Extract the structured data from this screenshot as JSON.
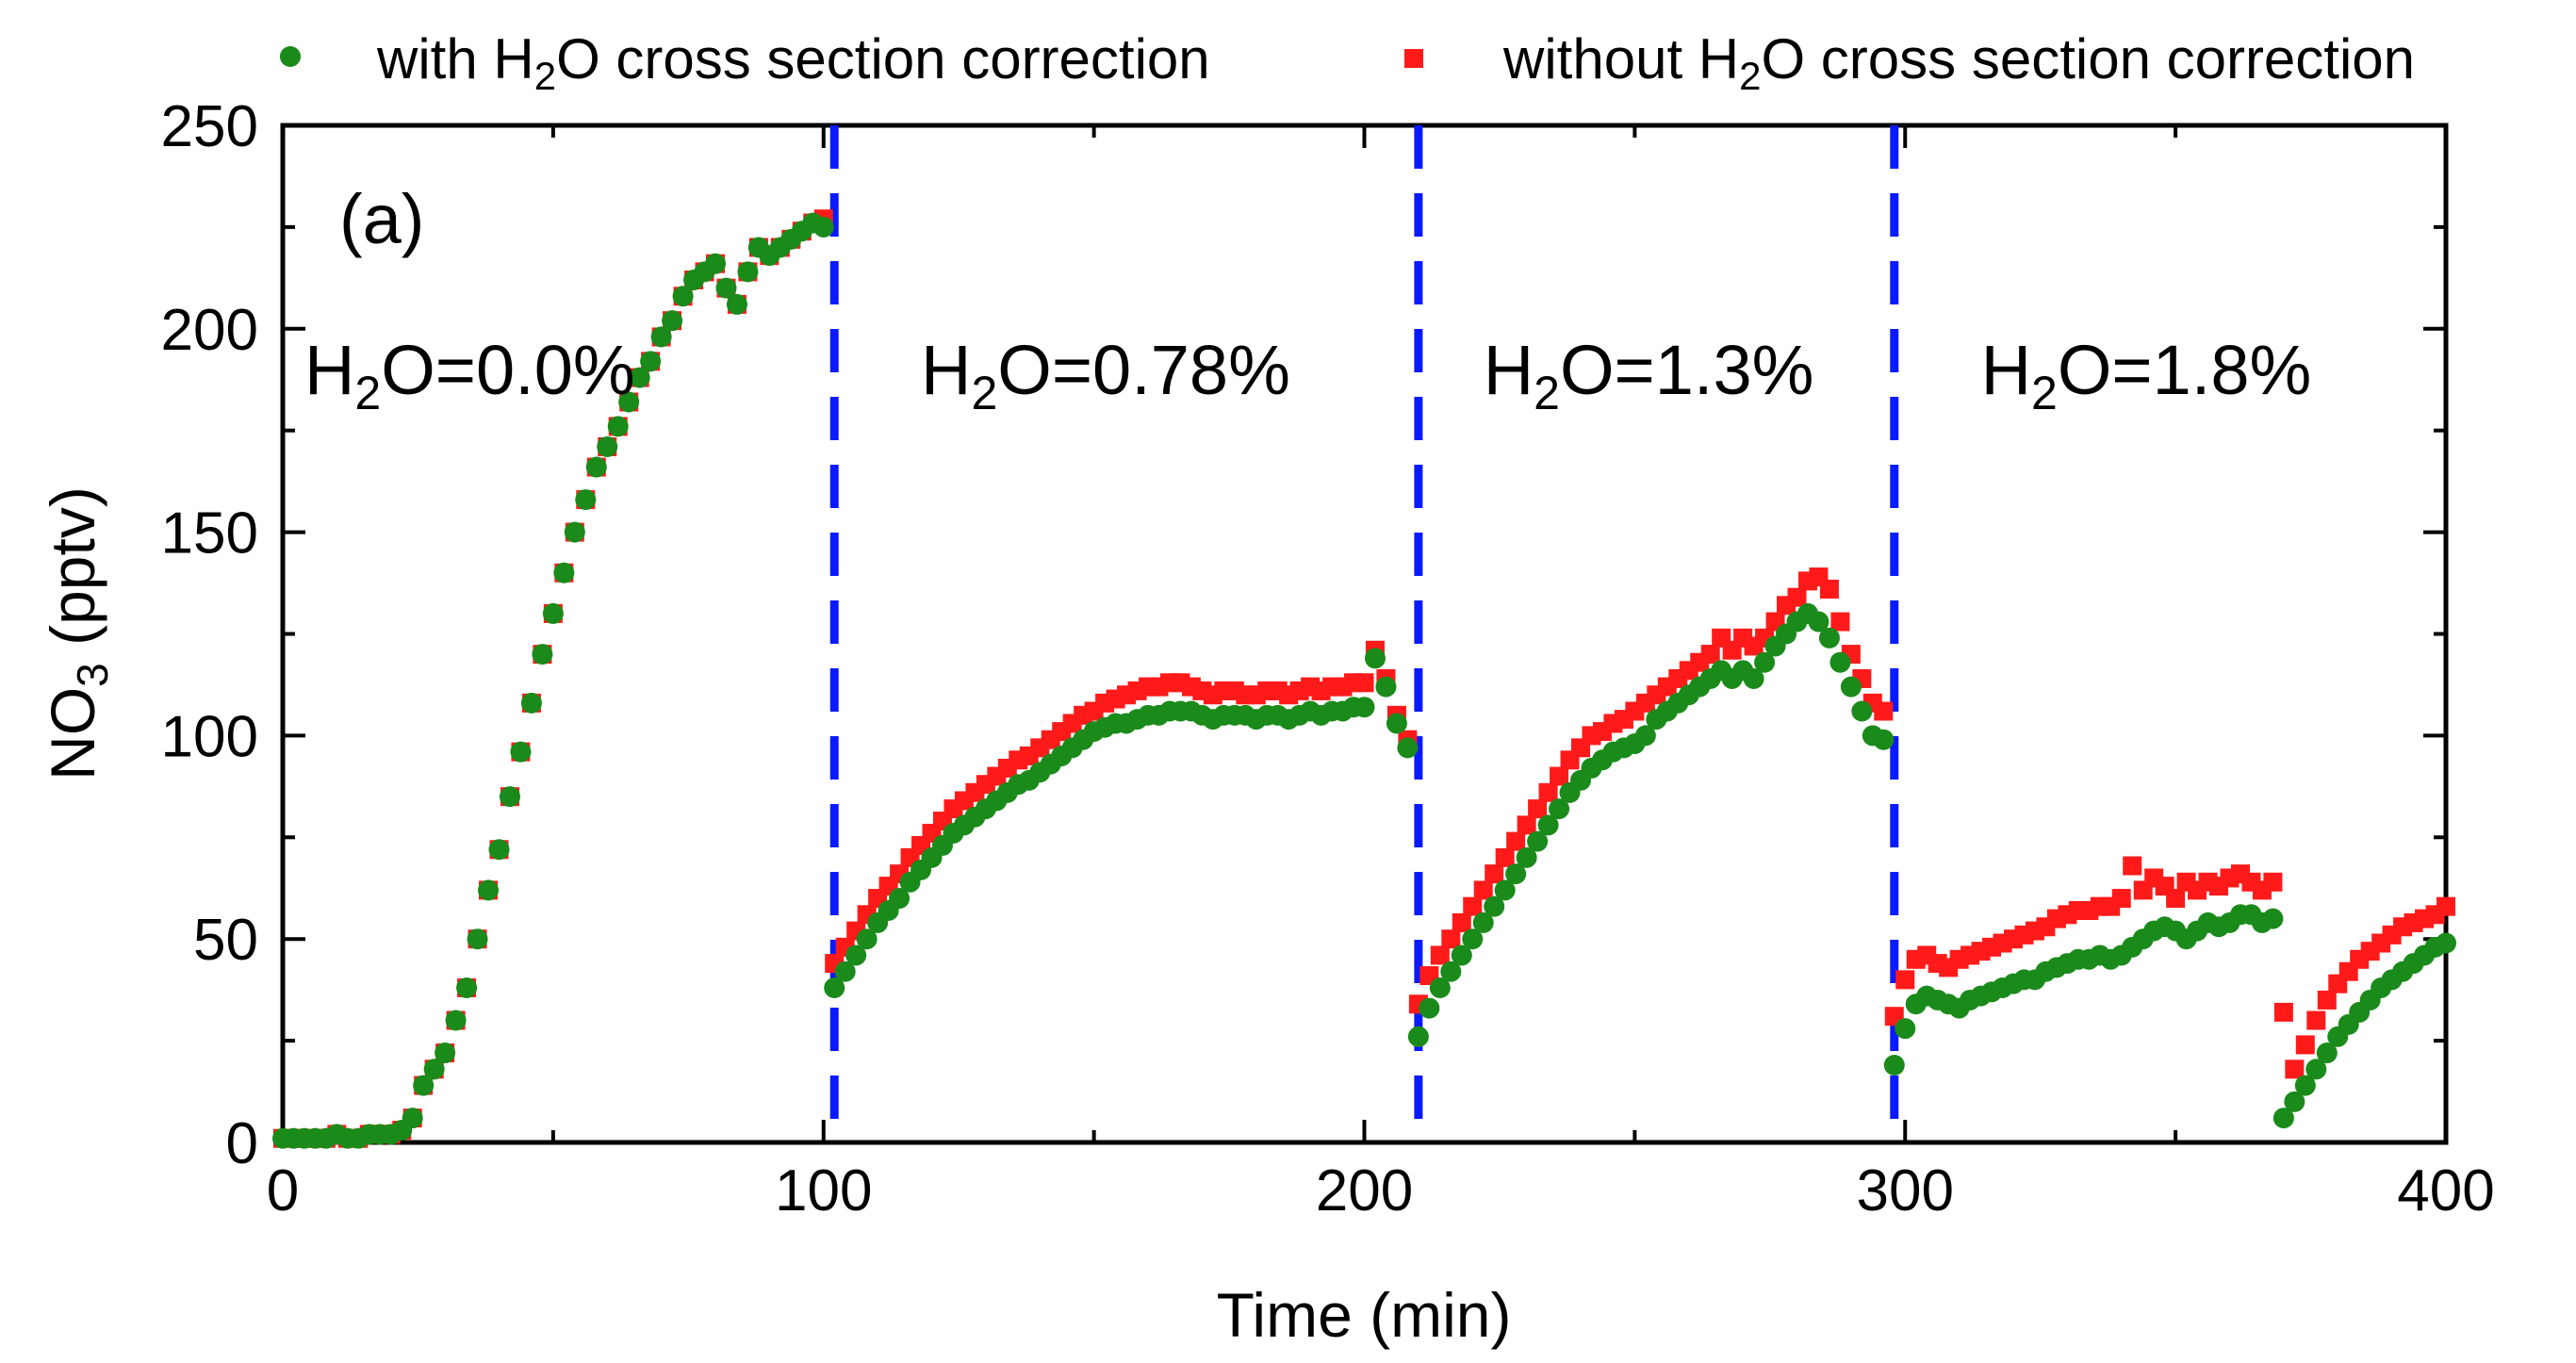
{
  "chart_data": {
    "type": "scatter",
    "title": "",
    "xlabel": {
      "text": "Time (min)"
    },
    "ylabel": {
      "main": "NO",
      "sub": "3",
      "rest": " (pptv)"
    },
    "xlim": [
      0,
      400
    ],
    "ylim": [
      0,
      250
    ],
    "xticks": [
      0,
      100,
      200,
      300,
      400
    ],
    "yticks": [
      0,
      50,
      100,
      150,
      200,
      250
    ],
    "xtick_labels": [
      "0",
      "100",
      "200",
      "300",
      "400"
    ],
    "ytick_labels": [
      "0",
      "50",
      "100",
      "150",
      "200",
      "250"
    ],
    "legend_position": "top",
    "colors": {
      "with": "#1a8a1a",
      "without": "#ff1a1a",
      "divider": "#0a1aff"
    },
    "legend": [
      {
        "pre": "with H",
        "sub": "2",
        "post": "O cross section correction",
        "series": "with"
      },
      {
        "pre": "without H",
        "sub": "2",
        "post": "O cross section correction",
        "series": "without"
      }
    ],
    "panel_label": "(a)",
    "vertical_lines": [
      102,
      210,
      298
    ],
    "annotations": [
      {
        "pre": "H",
        "sub": "2",
        "post": "O=0.0%",
        "x": 4,
        "y": 190
      },
      {
        "pre": "H",
        "sub": "2",
        "post": "O=0.78%",
        "x": 118,
        "y": 190
      },
      {
        "pre": "H",
        "sub": "2",
        "post": "O=1.3%",
        "x": 222,
        "y": 190
      },
      {
        "pre": "H",
        "sub": "2",
        "post": "O=1.8%",
        "x": 314,
        "y": 190
      }
    ],
    "series": [
      {
        "name": "with H2O cross section correction",
        "key": "with",
        "marker": "circle",
        "segments": [
          {
            "x": [
              0,
              2,
              4,
              6,
              8,
              10,
              12,
              14,
              16,
              18,
              20,
              22,
              24,
              26,
              28,
              30,
              32,
              34,
              36,
              38,
              40,
              42,
              44,
              46,
              48,
              50,
              52,
              54,
              56,
              58,
              60,
              62,
              64,
              66,
              68,
              70,
              72,
              74,
              76,
              78,
              80,
              82,
              84,
              86,
              88,
              90,
              92,
              94,
              96,
              98,
              100
            ],
            "y": [
              1,
              1,
              1,
              1,
              1,
              2,
              1,
              1,
              2,
              2,
              2,
              3,
              6,
              14,
              18,
              22,
              30,
              38,
              50,
              62,
              72,
              85,
              96,
              108,
              120,
              130,
              140,
              150,
              158,
              166,
              171,
              176,
              182,
              188,
              192,
              198,
              202,
              208,
              212,
              214,
              216,
              210,
              206,
              214,
              220,
              218,
              220,
              222,
              224,
              226,
              225
            ]
          },
          {
            "x": [
              102,
              104,
              106,
              108,
              110,
              112,
              114,
              116,
              118,
              120,
              122,
              124,
              126,
              128,
              130,
              132,
              134,
              136,
              138,
              140,
              142,
              144,
              146,
              148,
              150,
              152,
              154,
              156,
              158,
              160,
              162,
              164,
              166,
              168,
              170,
              172,
              174,
              176,
              178,
              180,
              182,
              184,
              186,
              188,
              190,
              192,
              194,
              196,
              198,
              200,
              202,
              204,
              206,
              208
            ],
            "y": [
              38,
              42,
              46,
              50,
              54,
              57,
              60,
              64,
              67,
              70,
              73,
              76,
              78,
              80,
              82,
              84,
              86,
              88,
              89,
              91,
              93,
              95,
              97,
              99,
              101,
              102,
              103,
              103,
              104,
              105,
              105,
              106,
              106,
              106,
              105,
              104,
              105,
              105,
              105,
              104,
              105,
              105,
              104,
              105,
              106,
              105,
              106,
              106,
              107,
              107,
              119,
              112,
              103,
              97
            ]
          },
          {
            "x": [
              210,
              212,
              214,
              216,
              218,
              220,
              222,
              224,
              226,
              228,
              230,
              232,
              234,
              236,
              238,
              240,
              242,
              244,
              246,
              248,
              250,
              252,
              254,
              256,
              258,
              260,
              262,
              264,
              266,
              268,
              270,
              272,
              274,
              276,
              278,
              280,
              282,
              284,
              286,
              288,
              290,
              292,
              294,
              296
            ],
            "y": [
              26,
              33,
              38,
              42,
              46,
              50,
              54,
              58,
              62,
              66,
              70,
              74,
              78,
              82,
              86,
              89,
              92,
              94,
              96,
              97,
              98,
              100,
              104,
              106,
              108,
              110,
              112,
              114,
              116,
              114,
              116,
              114,
              118,
              122,
              125,
              128,
              130,
              128,
              124,
              118,
              112,
              106,
              100,
              99
            ]
          },
          {
            "x": [
              298,
              300,
              302,
              304,
              306,
              308,
              310,
              312,
              314,
              316,
              318,
              320,
              322,
              324,
              326,
              328,
              330,
              332,
              334,
              336,
              338,
              340,
              342,
              344,
              346,
              348,
              350,
              352,
              354,
              356,
              358,
              360,
              362,
              364,
              366,
              368
            ],
            "y": [
              19,
              28,
              34,
              36,
              35,
              34,
              33,
              35,
              36,
              37,
              38,
              39,
              40,
              40,
              42,
              43,
              44,
              45,
              45,
              46,
              45,
              46,
              48,
              50,
              52,
              53,
              52,
              50,
              52,
              54,
              53,
              54,
              56,
              56,
              54,
              55
            ]
          },
          {
            "x": [
              370,
              372,
              374,
              376,
              378,
              380,
              382,
              384,
              386,
              388,
              390,
              392,
              394,
              396,
              398,
              400
            ],
            "y": [
              6,
              10,
              14,
              18,
              22,
              26,
              29,
              32,
              35,
              38,
              40,
              42,
              44,
              46,
              48,
              49
            ]
          }
        ]
      },
      {
        "name": "without H2O cross section correction",
        "key": "without",
        "marker": "square",
        "segments": [
          {
            "x": [
              0,
              2,
              4,
              6,
              8,
              10,
              12,
              14,
              16,
              18,
              20,
              22,
              24,
              26,
              28,
              30,
              32,
              34,
              36,
              38,
              40,
              42,
              44,
              46,
              48,
              50,
              52,
              54,
              56,
              58,
              60,
              62,
              64,
              66,
              68,
              70,
              72,
              74,
              76,
              78,
              80,
              82,
              84,
              86,
              88,
              90,
              92,
              94,
              96,
              98,
              100
            ],
            "y": [
              1,
              1,
              1,
              1,
              1,
              2,
              1,
              1,
              2,
              2,
              2,
              3,
              6,
              14,
              18,
              22,
              30,
              38,
              50,
              62,
              72,
              85,
              96,
              108,
              120,
              130,
              140,
              150,
              158,
              166,
              171,
              176,
              182,
              188,
              192,
              198,
              202,
              208,
              212,
              214,
              216,
              210,
              206,
              214,
              220,
              218,
              220,
              222,
              224,
              226,
              227
            ]
          },
          {
            "x": [
              102,
              104,
              106,
              108,
              110,
              112,
              114,
              116,
              118,
              120,
              122,
              124,
              126,
              128,
              130,
              132,
              134,
              136,
              138,
              140,
              142,
              144,
              146,
              148,
              150,
              152,
              154,
              156,
              158,
              160,
              162,
              164,
              166,
              168,
              170,
              172,
              174,
              176,
              178,
              180,
              182,
              184,
              186,
              188,
              190,
              192,
              194,
              196,
              198,
              200,
              202,
              204,
              206,
              208
            ],
            "y": [
              44,
              48,
              52,
              56,
              60,
              63,
              66,
              70,
              73,
              76,
              79,
              82,
              84,
              86,
              88,
              90,
              92,
              94,
              95,
              97,
              99,
              101,
              103,
              105,
              106,
              108,
              109,
              110,
              111,
              112,
              112,
              113,
              113,
              112,
              111,
              110,
              111,
              111,
              110,
              110,
              111,
              111,
              110,
              111,
              112,
              111,
              112,
              112,
              113,
              113,
              121,
              114,
              105,
              99
            ]
          },
          {
            "x": [
              210,
              212,
              214,
              216,
              218,
              220,
              222,
              224,
              226,
              228,
              230,
              232,
              234,
              236,
              238,
              240,
              242,
              244,
              246,
              248,
              250,
              252,
              254,
              256,
              258,
              260,
              262,
              264,
              266,
              268,
              270,
              272,
              274,
              276,
              278,
              280,
              282,
              284,
              286,
              288,
              290,
              292,
              294,
              296
            ],
            "y": [
              34,
              41,
              46,
              50,
              54,
              58,
              62,
              66,
              70,
              74,
              78,
              82,
              86,
              90,
              94,
              97,
              100,
              101,
              103,
              104,
              106,
              108,
              110,
              112,
              114,
              116,
              118,
              120,
              124,
              121,
              124,
              122,
              124,
              128,
              132,
              134,
              138,
              139,
              136,
              128,
              120,
              114,
              108,
              106
            ]
          },
          {
            "x": [
              298,
              300,
              302,
              304,
              306,
              308,
              310,
              312,
              314,
              316,
              318,
              320,
              322,
              324,
              326,
              328,
              330,
              332,
              334,
              336,
              338,
              340,
              342,
              344,
              346,
              348,
              350,
              352,
              354,
              356,
              358,
              360,
              362,
              364,
              366,
              368
            ],
            "y": [
              31,
              40,
              45,
              46,
              44,
              43,
              45,
              46,
              47,
              48,
              49,
              50,
              51,
              52,
              53,
              55,
              56,
              57,
              57,
              58,
              58,
              60,
              68,
              62,
              65,
              63,
              60,
              64,
              62,
              64,
              63,
              65,
              66,
              64,
              62,
              64
            ]
          },
          {
            "x": [
              370,
              372,
              374,
              376,
              378,
              380,
              382,
              384,
              386,
              388,
              390,
              392,
              394,
              396,
              398,
              400
            ],
            "y": [
              32,
              18,
              24,
              30,
              35,
              39,
              42,
              45,
              47,
              49,
              51,
              53,
              54,
              55,
              56,
              58
            ]
          }
        ]
      }
    ]
  }
}
